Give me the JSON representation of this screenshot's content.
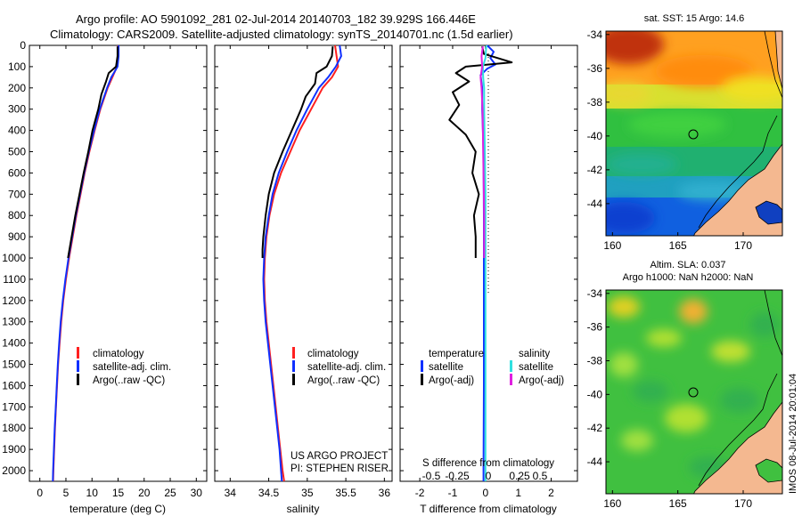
{
  "header": {
    "line1": "Argo profile: AO 5901092_281 02-Jul-2014 20140703_182 39.929S 166.446E",
    "line2": "Climatology: CARS2009. Satellite-adjusted climatology: synTS_20140701.nc (1.5d earlier)"
  },
  "colors": {
    "climatology": "#ff2020",
    "satellite_adj": "#1030ff",
    "argo": "#000000",
    "salinity_sat": "#30e0e0",
    "salinity_argo": "#e020e0"
  },
  "chart_data": [
    {
      "id": "temperature",
      "type": "line",
      "xlabel": "temperature (deg C)",
      "xlim": [
        -2,
        32
      ],
      "ylim": [
        2050,
        0
      ],
      "xticks": [
        "0",
        "5",
        "10",
        "15",
        "20",
        "25",
        "30"
      ],
      "yticks": [
        "0",
        "100",
        "200",
        "300",
        "400",
        "500",
        "600",
        "700",
        "800",
        "900",
        "1000",
        "1100",
        "1200",
        "1300",
        "1400",
        "1500",
        "1600",
        "1700",
        "1800",
        "1900",
        "2000"
      ],
      "legend": [
        "climatology",
        "satellite-adj. clim.",
        "Argo(..raw -QC)"
      ],
      "series": [
        {
          "name": "climatology",
          "color": "#ff2020",
          "depth": [
            0,
            50,
            100,
            150,
            200,
            300,
            400,
            500,
            600,
            700,
            800,
            900,
            1000,
            1100,
            1200,
            1300,
            1400,
            1500,
            1600,
            1700,
            1800,
            1900,
            2000,
            2050
          ],
          "values": [
            15.0,
            15.0,
            14.8,
            13.9,
            13.0,
            11.6,
            10.5,
            9.5,
            8.6,
            7.8,
            7.0,
            6.3,
            5.6,
            5.0,
            4.5,
            4.1,
            3.8,
            3.5,
            3.3,
            3.1,
            2.9,
            2.75,
            2.6,
            2.55
          ]
        },
        {
          "name": "satellite-adj. clim.",
          "color": "#1030ff",
          "depth": [
            0,
            50,
            100,
            150,
            200,
            300,
            400,
            500,
            600,
            700,
            800,
            900,
            1000,
            1100,
            1200,
            1300,
            1400,
            1500,
            1600,
            1700,
            1800,
            1900,
            2000,
            2050
          ],
          "values": [
            15.1,
            15.1,
            14.9,
            13.7,
            12.9,
            11.5,
            10.4,
            9.4,
            8.5,
            7.7,
            6.9,
            6.2,
            5.5,
            4.9,
            4.4,
            4.0,
            3.7,
            3.45,
            3.25,
            3.05,
            2.85,
            2.7,
            2.55,
            2.5
          ]
        },
        {
          "name": "Argo(..raw -QC)",
          "color": "#000000",
          "depth": [
            5,
            50,
            100,
            130,
            170,
            230,
            300,
            400,
            500,
            600,
            700,
            800,
            900,
            1000
          ],
          "values": [
            14.9,
            14.9,
            14.6,
            13.2,
            12.7,
            11.8,
            11.2,
            10.1,
            9.3,
            8.4,
            7.6,
            6.8,
            6.1,
            5.4
          ]
        }
      ]
    },
    {
      "id": "salinity",
      "type": "line",
      "xlabel": "salinity",
      "xlim": [
        33.8,
        36.1
      ],
      "ylim": [
        2050,
        0
      ],
      "xticks": [
        "34",
        "34.5",
        "35",
        "35.5",
        "36"
      ],
      "legend": [
        "climatology",
        "satellite-adj. clim.",
        "Argo(..raw -QC)"
      ],
      "annotation": [
        "US ARGO PROJECT",
        "PI: STEPHEN RISER"
      ],
      "series": [
        {
          "name": "climatology",
          "color": "#ff2020",
          "depth": [
            0,
            50,
            100,
            150,
            200,
            300,
            400,
            500,
            600,
            700,
            800,
            900,
            1000,
            1100,
            1200,
            1300,
            1400,
            1500,
            1600,
            1700,
            1800,
            1900,
            2000,
            2050
          ],
          "values": [
            35.36,
            35.38,
            35.4,
            35.32,
            35.2,
            35.05,
            34.9,
            34.78,
            34.66,
            34.57,
            34.51,
            34.47,
            34.45,
            34.44,
            34.45,
            34.47,
            34.5,
            34.53,
            34.56,
            34.59,
            34.62,
            34.65,
            34.68,
            34.7
          ]
        },
        {
          "name": "satellite-adj. clim.",
          "color": "#1030ff",
          "depth": [
            0,
            50,
            100,
            150,
            200,
            300,
            400,
            500,
            600,
            700,
            800,
            900,
            1000,
            1100,
            1200,
            1300,
            1400,
            1500,
            1600,
            1700,
            1800,
            1900,
            2000,
            2050
          ],
          "values": [
            35.42,
            35.44,
            35.37,
            35.27,
            35.15,
            35.0,
            34.86,
            34.74,
            34.63,
            34.55,
            34.5,
            34.46,
            34.44,
            34.43,
            34.44,
            34.46,
            34.49,
            34.52,
            34.55,
            34.58,
            34.61,
            34.64,
            34.66,
            34.67
          ]
        },
        {
          "name": "Argo(..raw -QC)",
          "color": "#000000",
          "depth": [
            5,
            50,
            100,
            130,
            180,
            240,
            300,
            350,
            400,
            500,
            600,
            700,
            800,
            900,
            960,
            1000
          ],
          "values": [
            35.33,
            35.32,
            35.25,
            35.12,
            35.1,
            34.98,
            34.92,
            34.86,
            34.8,
            34.68,
            34.57,
            34.5,
            34.46,
            34.43,
            34.42,
            34.42
          ]
        }
      ]
    },
    {
      "id": "differences",
      "type": "line",
      "xlabel": "T difference from climatology",
      "xlabel_top": "S difference from climatology",
      "xlim": [
        -2.6,
        2.8
      ],
      "ylim": [
        2050,
        0
      ],
      "xticks": [
        "-2",
        "-1",
        "0",
        "1",
        "2"
      ],
      "s_ticks": [
        "-0.5",
        "-0.25",
        "0",
        "0.25",
        "0.5"
      ],
      "legend_left": {
        "title": "temperature",
        "items": [
          "satellite",
          "Argo(-adj)"
        ]
      },
      "legend_right": {
        "title": "salinity",
        "items": [
          "satellite",
          "Argo(-adj)"
        ]
      },
      "series": [
        {
          "name": "temperature satellite",
          "color": "#1030ff",
          "depth": [
            0,
            30,
            60,
            90,
            110,
            140,
            200,
            300,
            400,
            500,
            800,
            1200,
            1600,
            2000,
            2050
          ],
          "values": [
            0.05,
            0.25,
            0.15,
            0.3,
            0.05,
            -0.15,
            -0.1,
            -0.1,
            -0.08,
            -0.06,
            -0.05,
            -0.05,
            -0.05,
            -0.06,
            -0.06
          ]
        },
        {
          "name": "temperature Argo(-adj)",
          "color": "#000000",
          "depth": [
            5,
            40,
            80,
            100,
            130,
            170,
            220,
            280,
            350,
            420,
            500,
            600,
            700,
            800,
            900,
            1000
          ],
          "values": [
            -0.1,
            -0.05,
            0.8,
            -0.6,
            -0.9,
            -0.5,
            -1.0,
            -0.8,
            -1.1,
            -0.6,
            -0.3,
            -0.4,
            -0.2,
            -0.35,
            -0.3,
            -0.3
          ]
        },
        {
          "name": "salinity satellite",
          "color": "#30e0e0",
          "depth": [
            0,
            30,
            60,
            100,
            150,
            200,
            300,
            400,
            500,
            700,
            1000,
            1400,
            2000,
            2050
          ],
          "values": [
            0.03,
            0.01,
            0.0,
            -0.08,
            -0.07,
            -0.04,
            -0.04,
            -0.03,
            -0.02,
            0.0,
            0.0,
            0.0,
            0.0,
            0.0
          ]
        },
        {
          "name": "salinity Argo(-adj)",
          "color": "#e020e0",
          "depth": [
            5,
            50,
            100,
            150,
            200,
            300,
            400,
            500,
            600,
            700,
            800,
            900,
            1000
          ],
          "values": [
            -0.08,
            -0.12,
            -0.1,
            -0.15,
            -0.12,
            -0.09,
            -0.08,
            -0.07,
            -0.06,
            -0.05,
            -0.04,
            -0.04,
            -0.04
          ]
        }
      ]
    }
  ],
  "maps": [
    {
      "id": "sst-map",
      "title": "sat. SST: 15 Argo: 14.6",
      "xticks": [
        "160",
        "165",
        "170"
      ],
      "yticks": [
        "-34",
        "-36",
        "-38",
        "-40",
        "-42",
        "-44"
      ],
      "marker": {
        "lon": 166.4,
        "lat": -39.9
      }
    },
    {
      "id": "sla-map",
      "title_lines": [
        "Altim. SLA: 0.037",
        "Argo h1000: NaN h2000: NaN"
      ],
      "xticks": [
        "160",
        "165",
        "170"
      ],
      "yticks": [
        "-34",
        "-36",
        "-38",
        "-40",
        "-42",
        "-44"
      ],
      "marker": {
        "lon": 166.4,
        "lat": -39.9
      }
    }
  ],
  "stamp": "IMOS 08-Jul-2014 20:01:04"
}
